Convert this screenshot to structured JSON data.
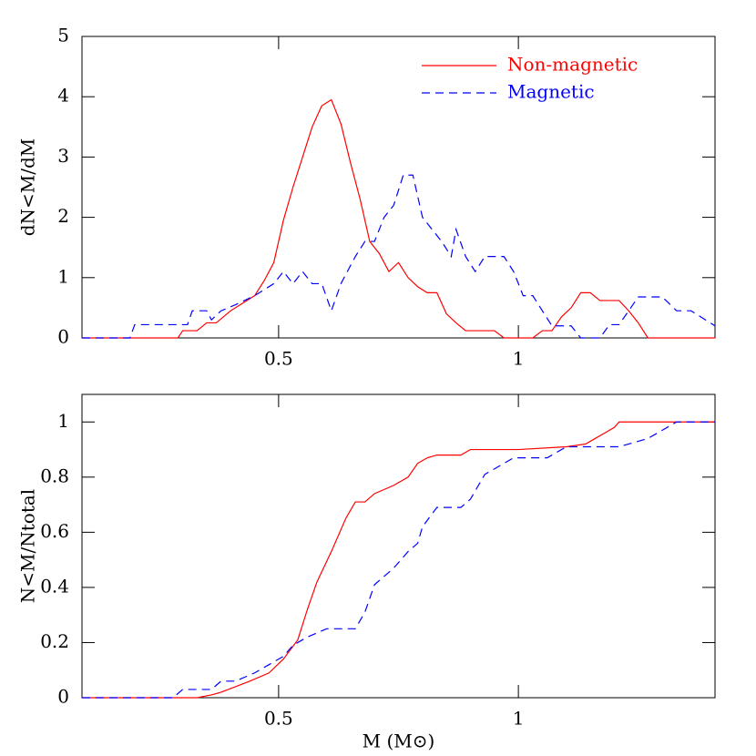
{
  "chart_data": [
    {
      "type": "line",
      "ylabel": "dN<M/dM",
      "legend": "upper right",
      "xlim": [
        0.09,
        1.41
      ],
      "xticks": [
        0.5,
        1
      ],
      "ylim": [
        0,
        5
      ],
      "yticks": [
        0,
        1,
        2,
        3,
        4,
        5
      ],
      "series": [
        {
          "name": "Non-magnetic",
          "color": "#ff0000",
          "dash": false,
          "x": [
            0.09,
            0.29,
            0.3,
            0.33,
            0.35,
            0.37,
            0.4,
            0.43,
            0.45,
            0.47,
            0.49,
            0.51,
            0.53,
            0.55,
            0.57,
            0.59,
            0.61,
            0.63,
            0.65,
            0.67,
            0.69,
            0.71,
            0.73,
            0.75,
            0.77,
            0.79,
            0.81,
            0.83,
            0.85,
            0.87,
            0.89,
            0.91,
            0.95,
            0.97,
            1.03,
            1.05,
            1.07,
            1.09,
            1.11,
            1.13,
            1.15,
            1.17,
            1.21,
            1.23,
            1.25,
            1.27,
            1.41
          ],
          "values": [
            0,
            0,
            0.12,
            0.12,
            0.25,
            0.25,
            0.45,
            0.6,
            0.7,
            0.95,
            1.25,
            1.95,
            2.5,
            3.0,
            3.5,
            3.85,
            3.95,
            3.55,
            2.9,
            2.3,
            1.6,
            1.4,
            1.1,
            1.25,
            1.0,
            0.85,
            0.75,
            0.75,
            0.4,
            0.25,
            0.12,
            0.12,
            0.12,
            0,
            0,
            0.12,
            0.12,
            0.35,
            0.5,
            0.75,
            0.75,
            0.62,
            0.62,
            0.45,
            0.25,
            0,
            0
          ]
        },
        {
          "name": "Magnetic",
          "color": "#0000ff",
          "dash": true,
          "x": [
            0.09,
            0.19,
            0.2,
            0.31,
            0.32,
            0.35,
            0.36,
            0.38,
            0.41,
            0.45,
            0.49,
            0.51,
            0.53,
            0.55,
            0.57,
            0.59,
            0.61,
            0.63,
            0.66,
            0.68,
            0.7,
            0.72,
            0.74,
            0.76,
            0.78,
            0.8,
            0.82,
            0.84,
            0.86,
            0.87,
            0.89,
            0.91,
            0.93,
            0.97,
            0.99,
            1.01,
            1.03,
            1.05,
            1.07,
            1.11,
            1.13,
            1.17,
            1.19,
            1.21,
            1.23,
            1.25,
            1.3,
            1.33,
            1.36,
            1.41
          ],
          "values": [
            0,
            0,
            0.22,
            0.22,
            0.45,
            0.45,
            0.3,
            0.45,
            0.55,
            0.7,
            0.9,
            1.1,
            0.9,
            1.1,
            0.9,
            0.9,
            0.45,
            0.9,
            1.35,
            1.6,
            1.6,
            2.0,
            2.2,
            2.7,
            2.7,
            2.0,
            1.8,
            1.6,
            1.35,
            1.8,
            1.35,
            1.1,
            1.35,
            1.35,
            1.1,
            0.7,
            0.7,
            0.45,
            0.2,
            0.2,
            0,
            0,
            0.22,
            0.22,
            0.45,
            0.68,
            0.68,
            0.45,
            0.45,
            0.2
          ]
        }
      ]
    },
    {
      "type": "line",
      "ylabel": "N<M/Ntotal",
      "xlabel": "M (M⊙)",
      "xlim": [
        0.09,
        1.41
      ],
      "xticks": [
        0.5,
        1
      ],
      "ylim": [
        0,
        1.1
      ],
      "yticks": [
        0,
        0.2,
        0.4,
        0.6,
        0.8,
        1
      ],
      "series": [
        {
          "name": "Non-magnetic",
          "color": "#ff0000",
          "dash": false,
          "x": [
            0.09,
            0.33,
            0.36,
            0.38,
            0.41,
            0.44,
            0.48,
            0.51,
            0.54,
            0.56,
            0.58,
            0.61,
            0.64,
            0.66,
            0.68,
            0.7,
            0.74,
            0.77,
            0.79,
            0.81,
            0.83,
            0.88,
            0.9,
            1.0,
            1.1,
            1.14,
            1.16,
            1.18,
            1.2,
            1.21,
            1.41
          ],
          "values": [
            0,
            0,
            0.01,
            0.02,
            0.04,
            0.06,
            0.09,
            0.14,
            0.21,
            0.32,
            0.42,
            0.53,
            0.65,
            0.71,
            0.71,
            0.74,
            0.77,
            0.8,
            0.85,
            0.87,
            0.88,
            0.88,
            0.9,
            0.9,
            0.91,
            0.92,
            0.94,
            0.96,
            0.98,
            1.0,
            1.0
          ]
        },
        {
          "name": "Magnetic",
          "color": "#0000ff",
          "dash": true,
          "x": [
            0.09,
            0.28,
            0.3,
            0.36,
            0.38,
            0.41,
            0.45,
            0.48,
            0.51,
            0.53,
            0.56,
            0.6,
            0.66,
            0.68,
            0.7,
            0.72,
            0.74,
            0.77,
            0.79,
            0.8,
            0.83,
            0.88,
            0.9,
            0.93,
            0.96,
            0.99,
            1.06,
            1.1,
            1.21,
            1.27,
            1.3,
            1.33,
            1.41
          ],
          "values": [
            0,
            0,
            0.03,
            0.03,
            0.06,
            0.06,
            0.09,
            0.12,
            0.15,
            0.19,
            0.22,
            0.25,
            0.25,
            0.31,
            0.41,
            0.44,
            0.47,
            0.53,
            0.56,
            0.62,
            0.69,
            0.69,
            0.72,
            0.81,
            0.84,
            0.87,
            0.87,
            0.91,
            0.91,
            0.94,
            0.97,
            1.0,
            1.0
          ]
        }
      ]
    }
  ]
}
